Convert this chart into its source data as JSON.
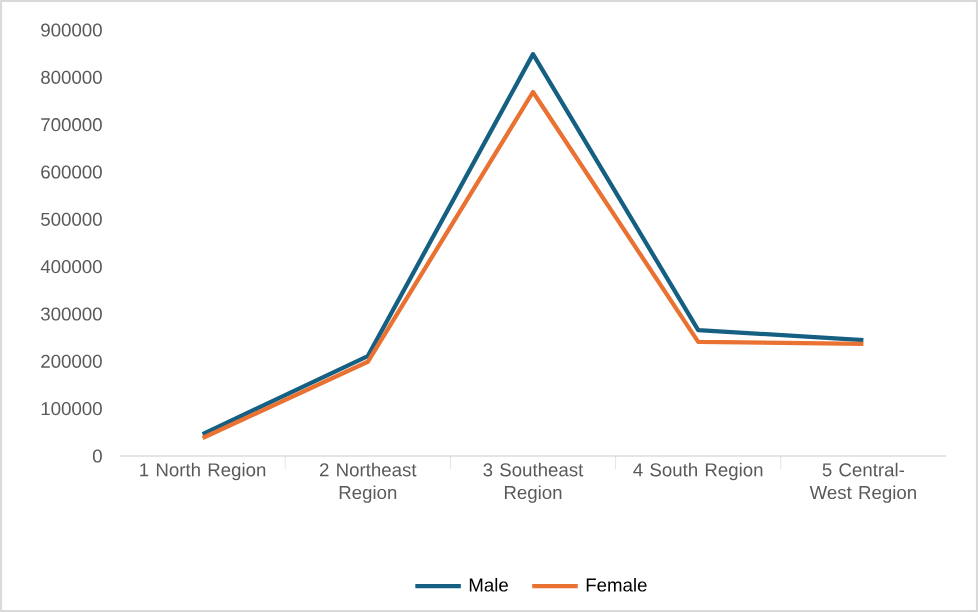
{
  "chart_data": {
    "type": "line",
    "categories": [
      "1 North Region",
      "2 Northeast Region",
      "3 Southeast Region",
      "4 South Region",
      "5 Central-West Region"
    ],
    "series": [
      {
        "name": "Male",
        "color": "#156082",
        "values": [
          46000,
          211000,
          849000,
          266000,
          245000
        ]
      },
      {
        "name": "Female",
        "color": "#e97132",
        "values": [
          38000,
          199000,
          769000,
          241000,
          237000
        ]
      }
    ],
    "ylim": [
      0,
      900000
    ],
    "yticks": [
      0,
      100000,
      200000,
      300000,
      400000,
      500000,
      600000,
      700000,
      800000,
      900000
    ],
    "legend": "bottom",
    "marker": "none",
    "line_style": "solid"
  }
}
